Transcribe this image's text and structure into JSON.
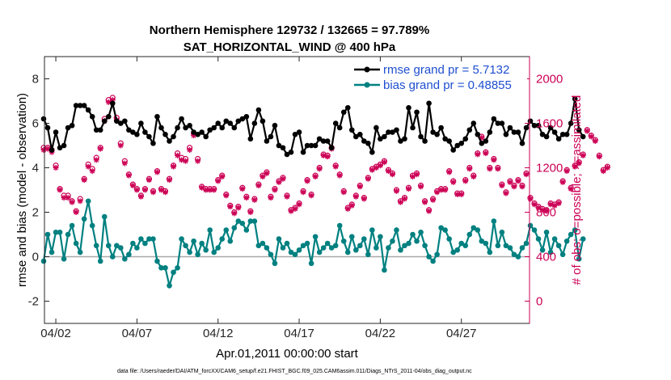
{
  "chart_data": {
    "type": "line",
    "title": "Northern Hemisphere 129732 / 132665 = 97.789%",
    "subtitle": "SAT_HORIZONTAL_WIND @ 400 hPa",
    "xlabel": "Apr.01,2011 00:00:00 start",
    "ylabel_left": "rmse and bias (model - observation)",
    "ylabel_right": "# of obs: o=possible; ×=assimilated",
    "footnote": "data file: /Users/raeder/DAI/ATM_forcXX/CAM6_setup/f.e21.FHIST_BGC.f09_025.CAM6assim.011/Diags_NTrS_2011-04/obs_diag_output.nc",
    "x_ticks": [
      "04/02",
      "04/07",
      "04/12",
      "04/17",
      "04/22",
      "04/27"
    ],
    "x_tick_days": [
      2,
      7,
      12,
      17,
      22,
      27
    ],
    "xlim_days": [
      1.3,
      31.2
    ],
    "y_left_ticks": [
      -2,
      0,
      2,
      4,
      6,
      8
    ],
    "ylim_left": [
      -3,
      9
    ],
    "y_right_ticks": [
      0,
      400,
      800,
      1200,
      1600,
      2000
    ],
    "ylim_right": [
      -200,
      2200
    ],
    "grid": false,
    "legend_position": "top-right",
    "colors": {
      "rmse": "#000000",
      "bias": "#008080",
      "obs": "#cc0055",
      "zero_line": "#a8a8a8",
      "legend_text": "#1f4fd0"
    },
    "series": [
      {
        "name": "rmse grand pr = 5.7132",
        "axis": "left",
        "marker": "filled-circle",
        "x_start_day": 1.25,
        "x_step_day": 0.25,
        "values": [
          6.2,
          5.8,
          4.8,
          5.6,
          4.9,
          5.0,
          5.8,
          5.9,
          6.8,
          6.8,
          6.8,
          6.6,
          6.3,
          5.7,
          5.7,
          6.1,
          6.3,
          6.9,
          6.1,
          6.0,
          6.1,
          5.7,
          5.6,
          5.5,
          6.0,
          5.6,
          5.4,
          5.1,
          6.3,
          5.8,
          5.5,
          5.2,
          5.4,
          5.8,
          6.2,
          5.8,
          5.9,
          5.6,
          5.5,
          5.6,
          5.4,
          5.7,
          5.8,
          6.0,
          5.8,
          6.1,
          6.0,
          5.8,
          6.1,
          6.2,
          6.3,
          5.3,
          6.0,
          6.6,
          6.1,
          5.2,
          5.4,
          5.9,
          5.0,
          4.9,
          4.6,
          4.7,
          5.5,
          5.6,
          4.7,
          5.0,
          5.0,
          5.0,
          5.3,
          5.2,
          5.2,
          4.9,
          6.0,
          5.8,
          6.5,
          6.7,
          5.7,
          5.4,
          5.5,
          5.2,
          5.1,
          4.7,
          5.8,
          5.3,
          5.4,
          5.6,
          5.6,
          5.7,
          5.2,
          5.3,
          6.7,
          5.8,
          6.5,
          5.4,
          5.2,
          6.9,
          5.6,
          5.5,
          5.8,
          5.3,
          5.2,
          4.8,
          5.0,
          5.1,
          5.3,
          5.7,
          6.0,
          5.5,
          5.1,
          5.2,
          5.6,
          6.2,
          6.0,
          6.0,
          5.5,
          5.8,
          5.6,
          5.6,
          5.1,
          5.8,
          6.1,
          5.9,
          5.9,
          5.5,
          5.4,
          5.8,
          5.6,
          5.3,
          5.5,
          5.5,
          6.0,
          7.1,
          5.7,
          5.4
        ]
      },
      {
        "name": "bias grand pr = 0.48855",
        "axis": "left",
        "marker": "filled-circle",
        "x_start_day": 1.25,
        "x_step_day": 0.25,
        "values": [
          -0.2,
          1.0,
          0.2,
          1.1,
          1.1,
          -0.1,
          1.0,
          1.4,
          0.6,
          0.2,
          1.7,
          2.5,
          1.4,
          0.5,
          -0.2,
          1.8,
          0.5,
          0.0,
          0.5,
          0.4,
          -0.1,
          0.1,
          0.6,
          0.4,
          0.8,
          0.6,
          0.8,
          0.8,
          -0.2,
          -0.5,
          -0.5,
          -1.3,
          -0.7,
          -0.5,
          0.8,
          0.5,
          0.2,
          0.7,
          0.1,
          0.6,
          0.3,
          1.2,
          0.2,
          0.4,
          0.8,
          1.2,
          0.7,
          1.3,
          1.6,
          1.5,
          1.2,
          1.6,
          1.6,
          0.5,
          0.6,
          0.4,
          0.1,
          -0.3,
          0.8,
          0.4,
          0.6,
          0.2,
          0.1,
          0.3,
          0.5,
          0.6,
          -0.3,
          0.9,
          0.2,
          0.4,
          0.6,
          0.4,
          0.5,
          1.4,
          0.7,
          0.2,
          0.9,
          0.3,
          0.5,
          0.8,
          0.1,
          1.2,
          0.4,
          0.9,
          -0.6,
          0.4,
          0.7,
          1.2,
          0.3,
          0.5,
          0.6,
          1.0,
          0.7,
          1.1,
          0.5,
          0.0,
          -0.2,
          0.1,
          1.3,
          1.2,
          0.8,
          0.2,
          0.3,
          0.6,
          0.5,
          1.0,
          1.3,
          1.2,
          0.7,
          0.6,
          0.2,
          1.6,
          0.5,
          1.1,
          0.5,
          0.4,
          0.1,
          0.0,
          0.4,
          0.6,
          1.4,
          1.2,
          0.8,
          0.3,
          1.1,
          0.2,
          0.8,
          0.5,
          0.1,
          0.7,
          1.0,
          1.2,
          -0.1,
          0.8
        ]
      },
      {
        "name": "# of obs possible",
        "axis": "right",
        "marker": "circle",
        "x_start_day": 1.25,
        "x_step_day": 0.25,
        "values": [
          1380,
          1380,
          1360,
          1220,
          1010,
          950,
          950,
          900,
          810,
          920,
          1100,
          1230,
          1190,
          1290,
          1380,
          1640,
          1810,
          1830,
          1650,
          1420,
          1260,
          1140,
          1050,
          1010,
          950,
          1010,
          1100,
          990,
          1170,
          1010,
          990,
          1100,
          1220,
          1330,
          1290,
          1280,
          1380,
          1510,
          1280,
          1030,
          1010,
          1010,
          1010,
          1090,
          1130,
          960,
          860,
          800,
          850,
          1020,
          940,
          810,
          920,
          1050,
          1130,
          1160,
          940,
          1010,
          1080,
          1110,
          950,
          820,
          840,
          880,
          990,
          1090,
          960,
          1130,
          1200,
          1320,
          1310,
          1380,
          1220,
          1140,
          990,
          840,
          870,
          950,
          1040,
          930,
          1110,
          1190,
          1210,
          1230,
          1260,
          1180,
          1150,
          1000,
          900,
          930,
          1020,
          1130,
          1150,
          1040,
          900,
          820,
          920,
          990,
          1010,
          1010,
          1170,
          1080,
          970,
          970,
          1090,
          1200,
          1130,
          1330,
          1480,
          1340,
          1200,
          1280,
          1200,
          1050,
          980,
          1080,
          1040,
          1090,
          1040,
          1150,
          930,
          880,
          850,
          830,
          820,
          880,
          870,
          890,
          1080,
          1180,
          1020,
          1220,
          1250,
          1320,
          1540,
          1490,
          1450,
          1310,
          1180,
          1210
        ]
      },
      {
        "name": "# of obs assimilated",
        "axis": "right",
        "marker": "asterisk",
        "x_start_day": 1.25,
        "x_step_day": 0.25,
        "values": [
          1360,
          1370,
          1340,
          1200,
          1000,
          930,
          930,
          890,
          800,
          900,
          1090,
          1210,
          1170,
          1270,
          1370,
          1620,
          1790,
          1810,
          1630,
          1400,
          1240,
          1130,
          1040,
          1000,
          940,
          1000,
          1090,
          980,
          1160,
          1000,
          980,
          1090,
          1210,
          1310,
          1270,
          1260,
          1360,
          1490,
          1260,
          1020,
          1000,
          1000,
          1000,
          1080,
          1120,
          950,
          850,
          790,
          840,
          1010,
          930,
          800,
          910,
          1040,
          1120,
          1150,
          930,
          1000,
          1070,
          1100,
          940,
          810,
          830,
          870,
          980,
          1080,
          950,
          1120,
          1190,
          1310,
          1300,
          1370,
          1210,
          1130,
          980,
          830,
          860,
          940,
          1030,
          920,
          1100,
          1180,
          1200,
          1220,
          1250,
          1170,
          1140,
          990,
          890,
          920,
          1010,
          1120,
          1140,
          1030,
          890,
          810,
          910,
          980,
          1000,
          1000,
          1160,
          1070,
          960,
          960,
          1080,
          1190,
          1120,
          1320,
          1470,
          1330,
          1190,
          1270,
          1190,
          1040,
          970,
          1070,
          1030,
          1080,
          1030,
          1140,
          920,
          870,
          840,
          820,
          810,
          870,
          860,
          880,
          1070,
          1170,
          1010,
          1210,
          1240,
          1310,
          1530,
          1480,
          1440,
          1300,
          1170,
          1200
        ]
      }
    ]
  }
}
